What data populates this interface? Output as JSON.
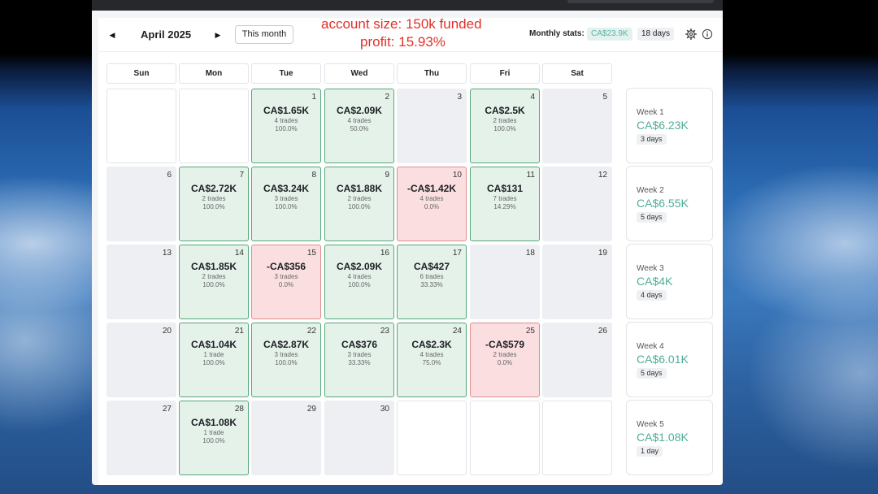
{
  "header": {
    "month": "April 2025",
    "this_month_label": "This month",
    "overlay_line1": "account size: 150k funded",
    "overlay_line2": "profit: 15.93%",
    "stats_label": "Monthly stats:",
    "stats_amount": "CA$23.9K",
    "stats_days": "18 days",
    "prev_icon": "caret-left-icon",
    "next_icon": "caret-right-icon",
    "settings_icon": "gear-icon",
    "info_icon": "info-icon"
  },
  "weekdays": [
    "Sun",
    "Mon",
    "Tue",
    "Wed",
    "Thu",
    "Fri",
    "Sat"
  ],
  "colors": {
    "profit_bg": "#e4f2ea",
    "profit_border": "#53a878",
    "loss_bg": "#fbdfe0",
    "loss_border": "#df8c8e",
    "accent_teal": "#4fae98",
    "overlay_red": "#e0312b"
  },
  "weeks": [
    {
      "label": "Week 1",
      "amount": "CA$6.23K",
      "days": "3 days",
      "cells": [
        {
          "kind": "blank",
          "day": ""
        },
        {
          "kind": "blank",
          "day": ""
        },
        {
          "kind": "profit",
          "day": "1",
          "pnl": "CA$1.65K",
          "trades": "4 trades",
          "rate": "100.0%"
        },
        {
          "kind": "profit",
          "day": "2",
          "pnl": "CA$2.09K",
          "trades": "4 trades",
          "rate": "50.0%"
        },
        {
          "kind": "empty",
          "day": "3"
        },
        {
          "kind": "profit",
          "day": "4",
          "pnl": "CA$2.5K",
          "trades": "2 trades",
          "rate": "100.0%"
        },
        {
          "kind": "empty",
          "day": "5"
        }
      ]
    },
    {
      "label": "Week 2",
      "amount": "CA$6.55K",
      "days": "5 days",
      "cells": [
        {
          "kind": "empty",
          "day": "6"
        },
        {
          "kind": "profit",
          "day": "7",
          "pnl": "CA$2.72K",
          "trades": "2 trades",
          "rate": "100.0%"
        },
        {
          "kind": "profit",
          "day": "8",
          "pnl": "CA$3.24K",
          "trades": "3 trades",
          "rate": "100.0%"
        },
        {
          "kind": "profit",
          "day": "9",
          "pnl": "CA$1.88K",
          "trades": "2 trades",
          "rate": "100.0%"
        },
        {
          "kind": "loss",
          "day": "10",
          "pnl": "-CA$1.42K",
          "trades": "4 trades",
          "rate": "0.0%"
        },
        {
          "kind": "profit",
          "day": "11",
          "pnl": "CA$131",
          "trades": "7 trades",
          "rate": "14.29%"
        },
        {
          "kind": "empty",
          "day": "12"
        }
      ]
    },
    {
      "label": "Week 3",
      "amount": "CA$4K",
      "days": "4 days",
      "cells": [
        {
          "kind": "empty",
          "day": "13"
        },
        {
          "kind": "profit",
          "day": "14",
          "pnl": "CA$1.85K",
          "trades": "2 trades",
          "rate": "100.0%"
        },
        {
          "kind": "loss",
          "day": "15",
          "pnl": "-CA$356",
          "trades": "3 trades",
          "rate": "0.0%"
        },
        {
          "kind": "profit",
          "day": "16",
          "pnl": "CA$2.09K",
          "trades": "4 trades",
          "rate": "100.0%"
        },
        {
          "kind": "profit",
          "day": "17",
          "pnl": "CA$427",
          "trades": "6 trades",
          "rate": "33.33%"
        },
        {
          "kind": "empty",
          "day": "18"
        },
        {
          "kind": "empty",
          "day": "19"
        }
      ]
    },
    {
      "label": "Week 4",
      "amount": "CA$6.01K",
      "days": "5 days",
      "cells": [
        {
          "kind": "empty",
          "day": "20"
        },
        {
          "kind": "profit",
          "day": "21",
          "pnl": "CA$1.04K",
          "trades": "1 trade",
          "rate": "100.0%"
        },
        {
          "kind": "profit",
          "day": "22",
          "pnl": "CA$2.87K",
          "trades": "3 trades",
          "rate": "100.0%"
        },
        {
          "kind": "profit",
          "day": "23",
          "pnl": "CA$376",
          "trades": "3 trades",
          "rate": "33.33%"
        },
        {
          "kind": "profit",
          "day": "24",
          "pnl": "CA$2.3K",
          "trades": "4 trades",
          "rate": "75.0%"
        },
        {
          "kind": "loss",
          "day": "25",
          "pnl": "-CA$579",
          "trades": "2 trades",
          "rate": "0.0%"
        },
        {
          "kind": "empty",
          "day": "26"
        }
      ]
    },
    {
      "label": "Week 5",
      "amount": "CA$1.08K",
      "days": "1 day",
      "cells": [
        {
          "kind": "empty",
          "day": "27"
        },
        {
          "kind": "profit",
          "day": "28",
          "pnl": "CA$1.08K",
          "trades": "1 trade",
          "rate": "100.0%"
        },
        {
          "kind": "empty",
          "day": "29"
        },
        {
          "kind": "empty",
          "day": "30"
        },
        {
          "kind": "blank",
          "day": ""
        },
        {
          "kind": "blank",
          "day": ""
        },
        {
          "kind": "blank",
          "day": ""
        }
      ]
    }
  ]
}
